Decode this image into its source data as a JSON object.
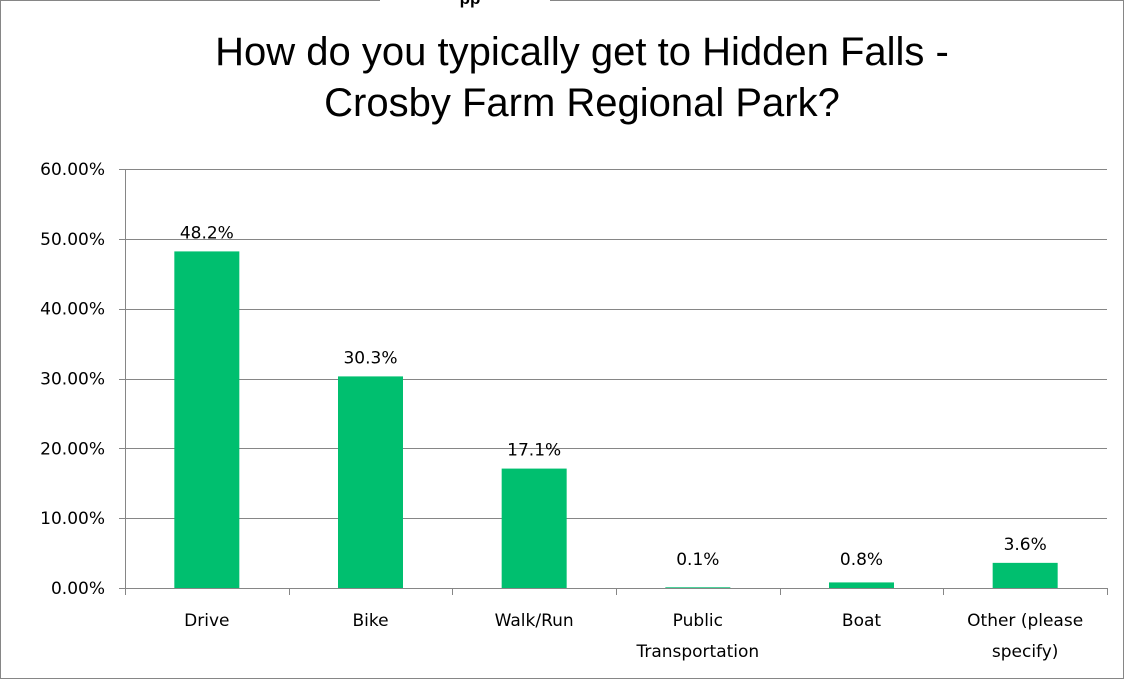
{
  "header_fragment": "pp",
  "chart_data": {
    "type": "bar",
    "title_lines": [
      "How do you typically get to Hidden Falls -",
      "Crosby Farm Regional Park?"
    ],
    "categories": [
      [
        "Drive"
      ],
      [
        "Bike"
      ],
      [
        "Walk/Run"
      ],
      [
        "Public",
        "Transportation"
      ],
      [
        "Boat"
      ],
      [
        "Other (please",
        "specify)"
      ]
    ],
    "values": [
      48.2,
      30.3,
      17.1,
      0.1,
      0.8,
      3.6
    ],
    "data_labels": [
      "48.2%",
      "30.3%",
      "17.1%",
      "0.1%",
      "0.8%",
      "3.6%"
    ],
    "ylim": [
      0,
      60
    ],
    "yticks": [
      0,
      10,
      20,
      30,
      40,
      50,
      60
    ],
    "ytick_labels": [
      "0.00%",
      "10.00%",
      "20.00%",
      "30.00%",
      "40.00%",
      "50.00%",
      "60.00%"
    ],
    "grid": true,
    "bar_color": "#00BF6F",
    "gridline_color": "#868686"
  }
}
